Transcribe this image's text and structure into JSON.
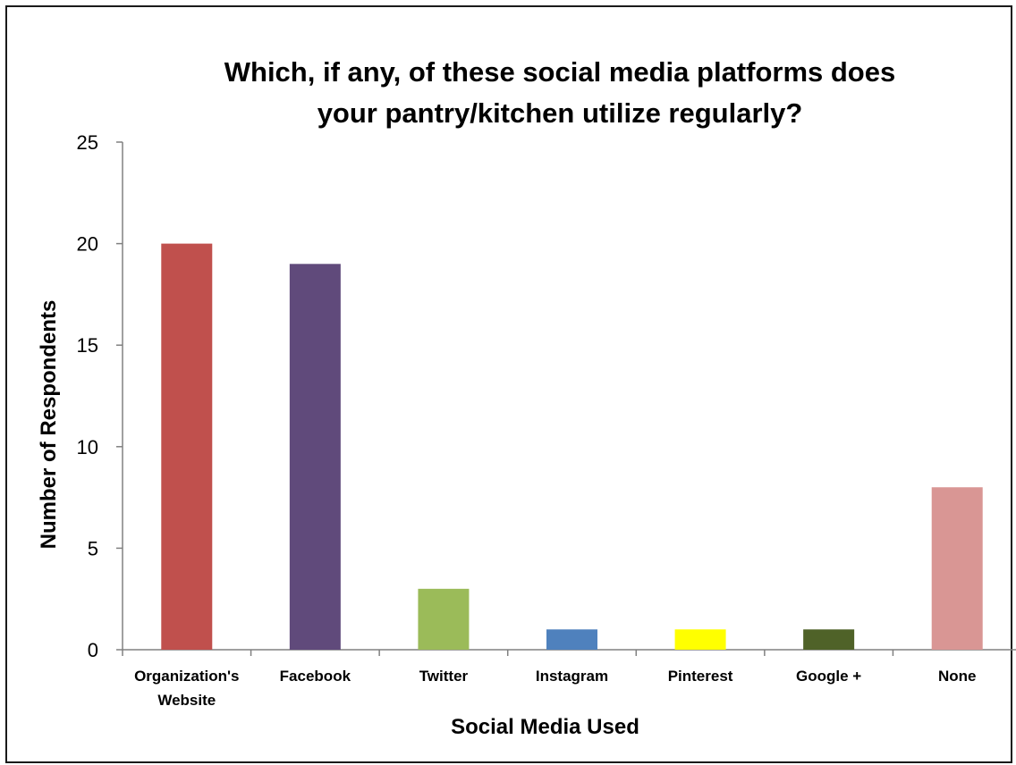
{
  "chart_data": {
    "type": "bar",
    "title_lines": [
      "Which, if any, of these social media platforms does",
      "your pantry/kitchen utilize regularly?"
    ],
    "xlabel": "Social Media Used",
    "ylabel": "Number of Respondents",
    "ylim": [
      0,
      25
    ],
    "yticks": [
      0,
      5,
      10,
      15,
      20,
      25
    ],
    "grid": false,
    "categories": [
      [
        "Organization's",
        "Website"
      ],
      [
        "Facebook"
      ],
      [
        "Twitter"
      ],
      [
        "Instagram"
      ],
      [
        "Pinterest"
      ],
      [
        "Google +"
      ],
      [
        "None"
      ]
    ],
    "values": [
      20,
      19,
      3,
      1,
      1,
      1,
      8
    ],
    "colors": [
      "#C0504D",
      "#604A7B",
      "#9BBB59",
      "#4F81BD",
      "#FFFF00",
      "#4F6228",
      "#D99694"
    ]
  }
}
